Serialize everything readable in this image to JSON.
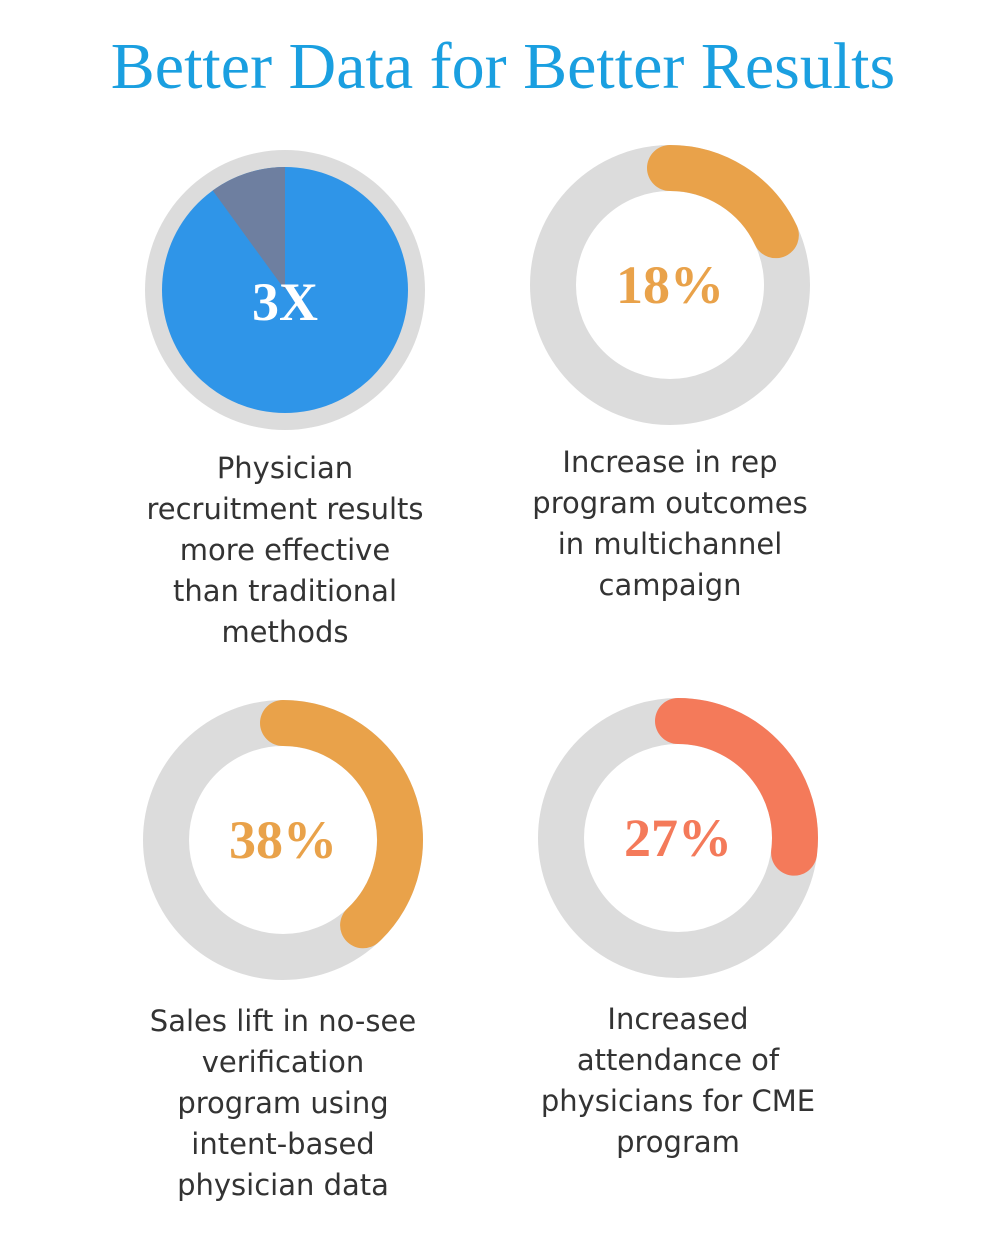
{
  "title": "Better Data for Better Results",
  "stats": [
    {
      "label": "3X",
      "description": [
        "Physician",
        "recruitment results",
        "more effective",
        "than traditional",
        "methods"
      ]
    },
    {
      "value": 18,
      "label": "18%",
      "color": "#e9a24a",
      "description": [
        "Increase in rep",
        "program outcomes",
        "in multichannel",
        "campaign"
      ]
    },
    {
      "value": 38,
      "label": "38%",
      "color": "#e9a24a",
      "description": [
        "Sales lift in no-see",
        "verification",
        "program using",
        "intent-based",
        "physician data"
      ]
    },
    {
      "value": 27,
      "label": "27%",
      "color": "#f47a5a",
      "description": [
        "Increased",
        "attendance of",
        "physicians for CME",
        "program"
      ]
    }
  ]
}
